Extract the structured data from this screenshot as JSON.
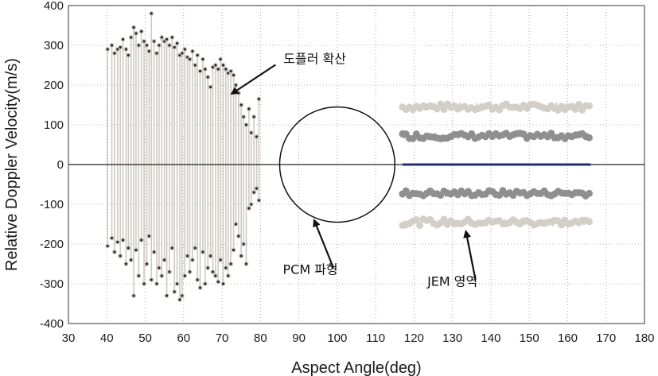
{
  "chart_data": {
    "type": "scatter",
    "xlabel": "Aspect Angle(deg)",
    "ylabel": "Relative Doppler Velocity(m/s)",
    "xlim": [
      30,
      180
    ],
    "ylim": [
      -400,
      400
    ],
    "xticks": [
      30,
      40,
      50,
      60,
      70,
      80,
      90,
      100,
      110,
      120,
      130,
      140,
      150,
      160,
      170,
      180
    ],
    "yticks": [
      -400,
      -300,
      -200,
      -100,
      0,
      100,
      200,
      300,
      400
    ],
    "grid": true,
    "colors": {
      "spread": "#cfcac3",
      "spread_dot": "#2a2a2a",
      "jem_outer": "#d3cec8",
      "jem_inner": "#8f8f8f",
      "center": "#1f2f6e",
      "zero_line": "#222222"
    },
    "spread_pairs": [
      [
        40.2,
        290,
        -205
      ],
      [
        41.3,
        300,
        -185
      ],
      [
        42.0,
        280,
        -220
      ],
      [
        42.8,
        290,
        -195
      ],
      [
        43.5,
        295,
        -230
      ],
      [
        44.2,
        315,
        -190
      ],
      [
        45.0,
        290,
        -250
      ],
      [
        45.6,
        275,
        -210
      ],
      [
        46.3,
        320,
        -240
      ],
      [
        47.0,
        345,
        -330
      ],
      [
        47.6,
        330,
        -215
      ],
      [
        48.3,
        300,
        -280
      ],
      [
        49.0,
        335,
        -190
      ],
      [
        49.7,
        310,
        -300
      ],
      [
        50.4,
        300,
        -250
      ],
      [
        51.0,
        285,
        -180
      ],
      [
        51.6,
        380,
        -290
      ],
      [
        52.3,
        310,
        -220
      ],
      [
        53.0,
        280,
        -300
      ],
      [
        53.6,
        300,
        -260
      ],
      [
        54.3,
        320,
        -280
      ],
      [
        55.0,
        310,
        -240
      ],
      [
        55.6,
        315,
        -330
      ],
      [
        56.3,
        300,
        -270
      ],
      [
        57.0,
        320,
        -210
      ],
      [
        57.6,
        295,
        -320
      ],
      [
        58.3,
        305,
        -300
      ],
      [
        59.0,
        275,
        -340
      ],
      [
        59.6,
        280,
        -330
      ],
      [
        60.3,
        290,
        -280
      ],
      [
        61.0,
        270,
        -230
      ],
      [
        61.6,
        265,
        -270
      ],
      [
        62.3,
        285,
        -240
      ],
      [
        63.0,
        250,
        -210
      ],
      [
        63.6,
        275,
        -290
      ],
      [
        64.3,
        235,
        -310
      ],
      [
        65.0,
        265,
        -220
      ],
      [
        65.6,
        240,
        -300
      ],
      [
        66.3,
        220,
        -260
      ],
      [
        67.0,
        195,
        -230
      ],
      [
        67.6,
        245,
        -270
      ],
      [
        68.3,
        250,
        -280
      ],
      [
        69.0,
        240,
        -295
      ],
      [
        69.6,
        265,
        -240
      ],
      [
        70.3,
        250,
        -300
      ],
      [
        71.0,
        240,
        -260
      ],
      [
        71.6,
        230,
        -280
      ],
      [
        72.3,
        235,
        -250
      ],
      [
        73.0,
        225,
        -215
      ],
      [
        73.6,
        200,
        -150
      ],
      [
        74.3,
        180,
        -180
      ],
      [
        75.0,
        150,
        -230
      ],
      [
        75.6,
        120,
        -200
      ],
      [
        76.3,
        100,
        -250
      ],
      [
        77.0,
        140,
        -110
      ],
      [
        77.6,
        80,
        -100
      ],
      [
        78.3,
        120,
        -70
      ],
      [
        79.0,
        70,
        -60
      ],
      [
        79.6,
        165,
        -90
      ]
    ],
    "jem_x_range": [
      117,
      166
    ],
    "jem_bands": [
      {
        "name": "upper",
        "y": 145,
        "spread": 8,
        "color": "#d3cec8"
      },
      {
        "name": "upper_inner",
        "y": 72,
        "spread": 7,
        "color": "#8f8f8f"
      },
      {
        "name": "lower_inner",
        "y": -72,
        "spread": 7,
        "color": "#8f8f8f"
      },
      {
        "name": "lower",
        "y": -145,
        "spread": 8,
        "color": "#d3cec8"
      }
    ],
    "pcm_circle": {
      "cx": 100,
      "cy": 0,
      "rx": 15,
      "ry": 145
    },
    "annotations": [
      {
        "text": "도플러 확산",
        "x": 86,
        "y": 255,
        "arrow_to": [
          72.5,
          178
        ]
      },
      {
        "text": "PCM 파형",
        "x": 93,
        "y": -275,
        "arrow_from": [
          99,
          -260
        ],
        "arrow_to": [
          94,
          -140
        ]
      },
      {
        "text": "JEM 영역",
        "x": 130,
        "y": -305,
        "arrow_from": [
          136,
          -290
        ],
        "arrow_to": [
          133.5,
          -168
        ]
      }
    ]
  }
}
